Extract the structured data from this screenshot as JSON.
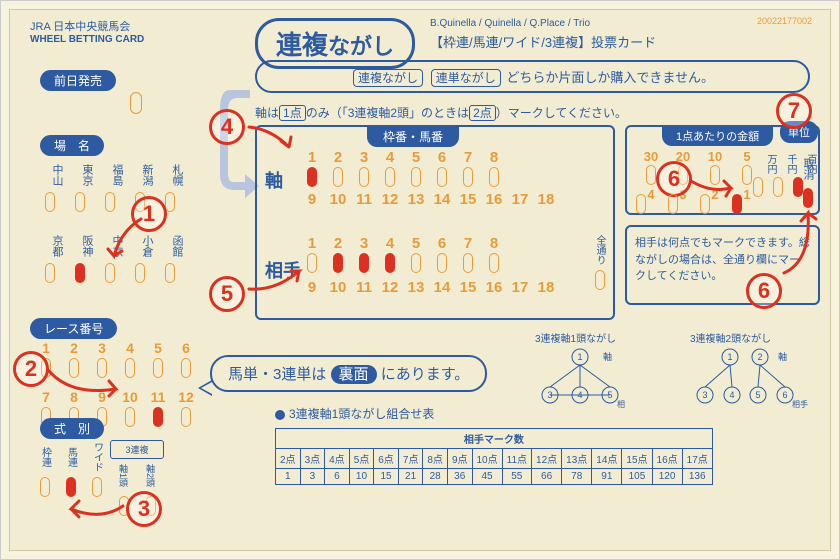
{
  "colors": {
    "primary": "#2d5aa0",
    "accent": "#e89b3a",
    "mark": "#dc3020",
    "bg": "#f2edd2"
  },
  "header": {
    "org": "JRA 日本中央競馬会",
    "sub": "WHEEL BETTING CARD",
    "code": "20022177002"
  },
  "title": {
    "main": "連複",
    "suffix": "ながし",
    "eng": "B.Quinella / Quinella / Q.Place / Trio",
    "jp": "【枠連/馬連/ワイド/3連複】投票カード"
  },
  "notice": {
    "a": "連複ながし",
    "b": "連単ながし",
    "text": "どちらか片面しか購入できません。"
  },
  "note2": "軸は 1点 のみ（「3連複軸2頭」のときは 2点 ）マークしてください。",
  "labels": {
    "presale": "前日発売",
    "venue": "場　名",
    "race": "レース番号",
    "type": "式　別",
    "axis": "軸",
    "opp": "相手",
    "horse_num": "枠番・馬番",
    "amount": "1点あたりの金額",
    "unit": "単位",
    "cancel": "取消",
    "zentori": "全通り"
  },
  "venues": {
    "row1": [
      "中山",
      "東京",
      "福島",
      "新潟",
      "札幌"
    ],
    "row2": [
      "京都",
      "阪神",
      "中京",
      "小倉",
      "函館"
    ],
    "marked": [
      false,
      false,
      false,
      false,
      false,
      false,
      true,
      false,
      false,
      false
    ]
  },
  "race": {
    "row1": [
      "1",
      "2",
      "3",
      "4",
      "5",
      "6"
    ],
    "row2": [
      "7",
      "8",
      "9",
      "10",
      "11",
      "12"
    ],
    "marked": [
      false,
      false,
      false,
      false,
      false,
      false,
      false,
      false,
      false,
      false,
      true,
      false
    ]
  },
  "types": {
    "items": [
      "枠連",
      "馬連",
      "ワイド"
    ],
    "special": {
      "title": "3連複",
      "a": "軸1頭",
      "b": "軸2頭"
    },
    "marked": [
      false,
      true,
      false,
      false,
      false
    ]
  },
  "axis": {
    "row1": [
      "1",
      "2",
      "3",
      "4",
      "5",
      "6",
      "7",
      "8"
    ],
    "row2": [
      "9",
      "10",
      "11",
      "12",
      "13",
      "14",
      "15",
      "16",
      "17",
      "18"
    ],
    "marked1": [
      true,
      false,
      false,
      false,
      false,
      false,
      false,
      false
    ]
  },
  "opp": {
    "row1": [
      "1",
      "2",
      "3",
      "4",
      "5",
      "6",
      "7",
      "8"
    ],
    "row2": [
      "9",
      "10",
      "11",
      "12",
      "13",
      "14",
      "15",
      "16",
      "17",
      "18"
    ],
    "marked1": [
      false,
      true,
      true,
      true,
      false,
      false,
      false,
      false
    ]
  },
  "amount": {
    "top": [
      "30",
      "20",
      "10",
      "5"
    ],
    "bot": [
      "4",
      "3",
      "2",
      "1"
    ],
    "units": [
      "万円",
      "千円",
      "百円"
    ],
    "marked_bot": [
      false,
      false,
      false,
      true
    ],
    "unit_marked": [
      false,
      false,
      true
    ]
  },
  "info": "相手は何点でもマークできます。総ながしの場合は、全通り欄にマークしてください。",
  "back_note": {
    "pre": "馬単・3連単は",
    "rev": "裏面",
    "post": "にあります。"
  },
  "combo": {
    "title": "3連複軸1頭ながし組合せ表",
    "hdr": "相手マーク数",
    "cols": [
      "2点",
      "3点",
      "4点",
      "5点",
      "6点",
      "7点",
      "8点",
      "9点",
      "10点",
      "11点",
      "12点",
      "13点",
      "14点",
      "15点",
      "16点",
      "17点"
    ],
    "vals": [
      "1",
      "3",
      "6",
      "10",
      "15",
      "21",
      "28",
      "36",
      "45",
      "55",
      "66",
      "78",
      "91",
      "105",
      "120",
      "136"
    ]
  },
  "diag": {
    "d1": "3連複軸1頭ながし",
    "d2": "3連複軸2頭ながし",
    "d1_axis": "①軸",
    "d1_opp": "相手",
    "d2_axis": "①②軸",
    "d2_opp": "③④⑤⑥ 相手"
  },
  "annotations": [
    "1",
    "2",
    "3",
    "4",
    "5",
    "6",
    "6",
    "7"
  ]
}
